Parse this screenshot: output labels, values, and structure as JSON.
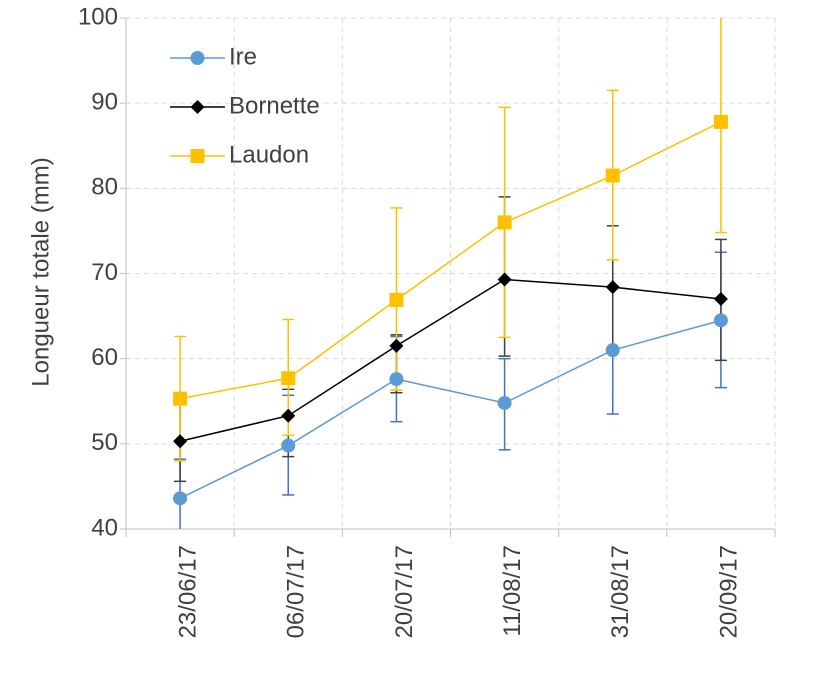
{
  "chart_data": {
    "type": "line",
    "title": "",
    "xlabel": "",
    "ylabel": "Longueur totale (mm)",
    "categories": [
      "23/06/17",
      "06/07/17",
      "20/07/17",
      "11/08/17",
      "31/08/17",
      "20/09/17"
    ],
    "ylim": [
      40,
      100
    ],
    "yticks": [
      40,
      50,
      60,
      70,
      80,
      90,
      100
    ],
    "grid": true,
    "legend_position": "top-left",
    "series": [
      {
        "name": "Ire",
        "color": "#5B9BD5",
        "error_color": "#4472C4",
        "marker": "circle",
        "values": [
          43.6,
          49.8,
          57.6,
          54.8,
          61.0,
          64.5
        ],
        "err_low": [
          40.0,
          44.0,
          52.6,
          49.3,
          53.5,
          56.6
        ],
        "err_high": [
          48.2,
          55.7,
          62.6,
          60.0,
          68.5,
          72.5
        ]
      },
      {
        "name": "Bornette",
        "color": "#000000",
        "error_color": "#404040",
        "marker": "diamond",
        "values": [
          50.3,
          53.3,
          61.5,
          69.3,
          68.4,
          67.0
        ],
        "err_low": [
          45.6,
          48.5,
          56.0,
          60.3,
          61.0,
          59.8
        ],
        "err_high": [
          55.0,
          56.4,
          62.8,
          79.0,
          75.6,
          74.0
        ]
      },
      {
        "name": "Laudon",
        "color": "#FFC000",
        "error_color": "#FFC000",
        "marker": "square",
        "values": [
          55.3,
          57.7,
          66.9,
          76.0,
          81.5,
          87.8
        ],
        "err_low": [
          48.0,
          51.0,
          56.3,
          62.5,
          71.6,
          74.8
        ],
        "err_high": [
          62.6,
          64.6,
          77.7,
          89.5,
          91.5,
          100.0
        ]
      }
    ]
  }
}
